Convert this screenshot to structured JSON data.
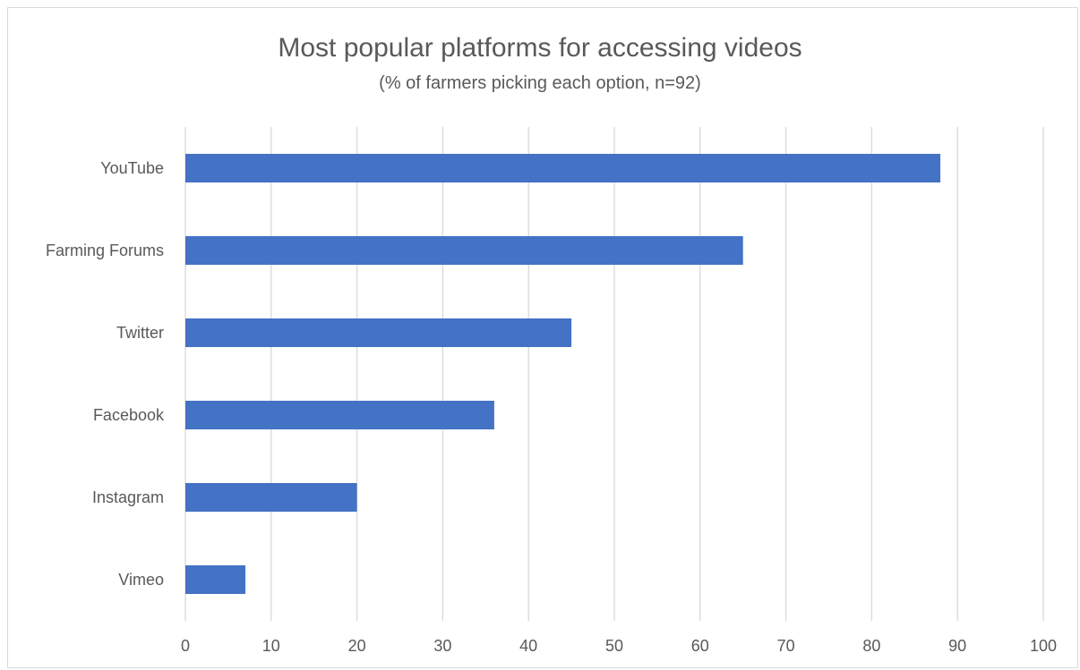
{
  "chart_data": {
    "type": "bar",
    "orientation": "horizontal",
    "title": "Most popular platforms for accessing videos",
    "subtitle": "(% of farmers picking each option, n=92)",
    "categories": [
      "YouTube",
      "Farming Forums",
      "Twitter",
      "Facebook",
      "Instagram",
      "Vimeo"
    ],
    "values": [
      88,
      65,
      45,
      36,
      20,
      7
    ],
    "xlim": [
      0,
      100
    ],
    "xticks": [
      "0",
      "10",
      "20",
      "30",
      "40",
      "50",
      "60",
      "70",
      "80",
      "90",
      "100"
    ],
    "grid": "vertical",
    "legend": "none",
    "colors": {
      "bar": "#4472c4",
      "grid": "#d9d9d9",
      "text": "#595959"
    }
  }
}
